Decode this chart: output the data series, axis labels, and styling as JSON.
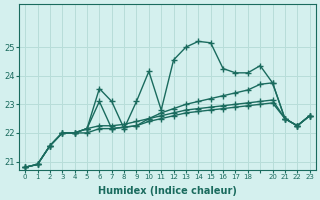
{
  "xlabel": "Humidex (Indice chaleur)",
  "ylabel": "",
  "background_color": "#d4f0ee",
  "line_color": "#1a6b5e",
  "grid_color": "#b8ddd9",
  "ylim": [
    20.7,
    26.5
  ],
  "xlim": [
    -0.5,
    23.5
  ],
  "yticks": [
    21,
    22,
    23,
    24,
    25
  ],
  "xtick_positions": [
    0,
    1,
    2,
    3,
    4,
    5,
    6,
    7,
    8,
    9,
    10,
    11,
    12,
    13,
    14,
    15,
    16,
    17,
    18,
    19,
    20,
    21,
    22,
    23
  ],
  "xtick_labels": [
    "0",
    "1",
    "2",
    "3",
    "4",
    "5",
    "6",
    "7",
    "8",
    "9",
    "10",
    "11",
    "12",
    "13",
    "14",
    "15",
    "16",
    "17",
    "18",
    "",
    "20",
    "21",
    "22",
    "23"
  ],
  "series": [
    [
      20.8,
      20.9,
      21.55,
      22.0,
      22.0,
      22.15,
      23.55,
      23.1,
      22.15,
      23.1,
      24.15,
      22.8,
      24.55,
      25.0,
      25.2,
      25.15,
      24.25,
      24.1,
      24.1,
      24.35,
      23.75,
      22.5,
      22.25,
      22.6
    ],
    [
      20.8,
      20.9,
      21.55,
      22.0,
      22.0,
      22.15,
      23.1,
      22.15,
      22.2,
      22.25,
      22.5,
      22.7,
      22.85,
      23.0,
      23.1,
      23.2,
      23.3,
      23.4,
      23.5,
      23.7,
      23.75,
      22.5,
      22.25,
      22.6
    ],
    [
      20.8,
      20.9,
      21.55,
      22.0,
      22.0,
      22.0,
      22.15,
      22.15,
      22.2,
      22.25,
      22.4,
      22.5,
      22.6,
      22.7,
      22.75,
      22.8,
      22.85,
      22.9,
      22.95,
      23.0,
      23.05,
      22.5,
      22.25,
      22.6
    ],
    [
      20.8,
      20.9,
      21.55,
      22.0,
      22.0,
      22.15,
      22.25,
      22.25,
      22.3,
      22.4,
      22.5,
      22.6,
      22.7,
      22.8,
      22.85,
      22.9,
      22.95,
      23.0,
      23.05,
      23.1,
      23.15,
      22.5,
      22.25,
      22.6
    ]
  ]
}
